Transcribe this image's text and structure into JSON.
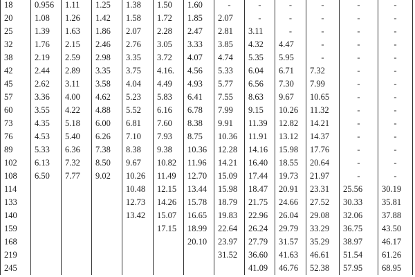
{
  "table": {
    "rows": [
      [
        "18",
        "0.956",
        "1.11",
        "1.25",
        "1.38",
        "1.50",
        "1.60",
        "-",
        "-",
        "-",
        "-",
        "-",
        "-"
      ],
      [
        "20",
        "1.08",
        "1.26",
        "1.42",
        "1.58",
        "1.72",
        "1.85",
        "2.07",
        "-",
        "-",
        "-",
        "-",
        "-"
      ],
      [
        "25",
        "1.39",
        "1.63",
        "1.86",
        "2.07",
        "2.28",
        "2.47",
        "2.81",
        "3.11",
        "-",
        "-",
        "-",
        "-"
      ],
      [
        "32",
        "1.76",
        "2.15",
        "2.46",
        "2.76",
        "3.05",
        "3.33",
        "3.85",
        "4.32",
        "4.47",
        "-",
        "-",
        "-"
      ],
      [
        "38",
        "2.19",
        "2.59",
        "2.98",
        "3.35",
        "3.72",
        "4.07",
        "4.74",
        "5.35",
        "5.95",
        "-",
        "-",
        "-"
      ],
      [
        "42",
        "2.44",
        "2.89",
        "3.35",
        "3.75",
        "4.16.",
        "4.56",
        "5.33",
        "6.04",
        "6.71",
        "7.32",
        "-",
        "-"
      ],
      [
        "45",
        "2.62",
        "3.11",
        "3.58",
        "4.04",
        "4.49",
        "4.93",
        "5.77",
        "6.56",
        "7.30",
        "7.99",
        "-",
        "-"
      ],
      [
        "57",
        "3.36",
        "4.00",
        "4.62",
        "5.23",
        "5.83",
        "6.41",
        "7.55",
        "8.63",
        "9.67",
        "10.65",
        "-",
        "-"
      ],
      [
        "60",
        "3.55",
        "4.22",
        "4.88",
        "5.52",
        "6.16",
        "6.78",
        "7.99",
        "9.15",
        "10.26",
        "11.32",
        "-",
        "-"
      ],
      [
        "73",
        "4.35",
        "5.18",
        "6.00",
        "6.81",
        "7.60",
        "8.38",
        "9.91",
        "11.39",
        "12.82",
        "14.21",
        "-",
        "-"
      ],
      [
        "76",
        "4.53",
        "5.40",
        "6.26",
        "7.10",
        "7.93",
        "8.75",
        "10.36",
        "11.91",
        "13.12",
        "14.37",
        "-",
        "-"
      ],
      [
        "89",
        "5.33",
        "6.36",
        "7.38",
        "8.38",
        "9.38",
        "10.36",
        "12.28",
        "14.16",
        "15.98",
        "17.76",
        "-",
        "-"
      ],
      [
        "102",
        "6.13",
        "7.32",
        "8.50",
        "9.67",
        "10.82",
        "11.96",
        "14.21",
        "16.40",
        "18.55",
        "20.64",
        "-",
        "-"
      ],
      [
        "108",
        "6.50",
        "7.77",
        "9.02",
        "10.26",
        "11.49",
        "12.70",
        "15.09",
        "17.44",
        "19.73",
        "21.97",
        "-",
        "-"
      ],
      [
        "114",
        "",
        "",
        "",
        "10.48",
        "12.15",
        "13.44",
        "15.98",
        "18.47",
        "20.91",
        "23.31",
        "25.56",
        "30.19"
      ],
      [
        "133",
        "",
        "",
        "",
        "12.73",
        "14.26",
        "15.78",
        "18.79",
        "21.75",
        "24.66",
        "27.52",
        "30.33",
        "35.81"
      ],
      [
        "140",
        "",
        "",
        "",
        "13.42",
        "15.07",
        "16.65",
        "19.83",
        "22.96",
        "26.04",
        "29.08",
        "32.06",
        "37.88"
      ],
      [
        "159",
        "",
        "",
        "",
        "",
        "17.15",
        "18.99",
        "22.64",
        "26.24",
        "29.79",
        "33.29",
        "36.75",
        "43.50"
      ],
      [
        "168",
        "",
        "",
        "",
        "",
        "",
        "20.10",
        "23.97",
        "27.79",
        "31.57",
        "35.29",
        "38.97",
        "46.17"
      ],
      [
        "219",
        "",
        "",
        "",
        "",
        "",
        "",
        "31.52",
        "36.60",
        "41.63",
        "46.61",
        "51.54",
        "61.26"
      ],
      [
        "245",
        "",
        "",
        "",
        "",
        "",
        "",
        "",
        "41.09",
        "46.76",
        "52.38",
        "57.95",
        "68.95"
      ]
    ]
  }
}
